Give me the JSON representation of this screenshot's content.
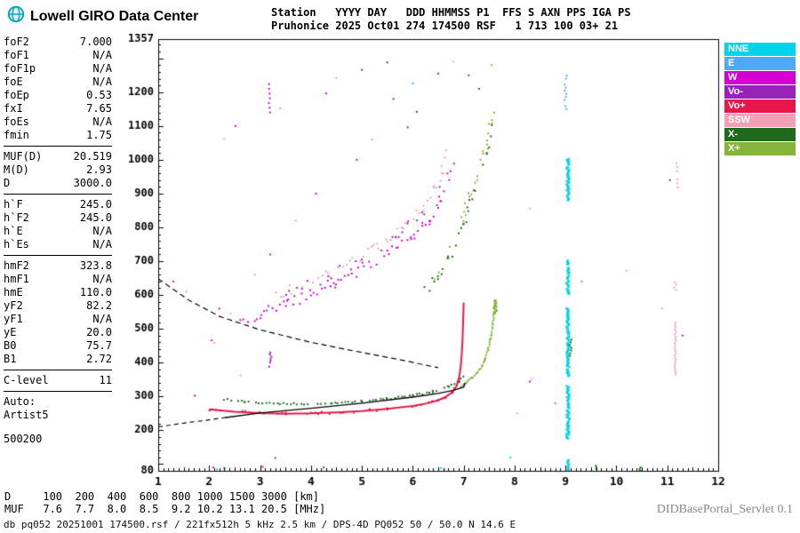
{
  "header": {
    "brand": "Lowell GIRO Data Center",
    "line1": "Station   YYYY DAY   DDD HHMMSS P1  FFS S AXN PPS IGA PS",
    "line2": "Pruhonice 2025 Oct01 274 174500 RSF   1 713 100 03+ 21"
  },
  "params": {
    "groups": [
      [
        {
          "label": "foF2",
          "value": "7.000"
        },
        {
          "label": "foF1",
          "value": "N/A"
        },
        {
          "label": "foF1p",
          "value": "N/A"
        },
        {
          "label": "foE",
          "value": "N/A"
        },
        {
          "label": "foEp",
          "value": "0.53"
        },
        {
          "label": "fxI",
          "value": "7.65"
        },
        {
          "label": "foEs",
          "value": "N/A"
        },
        {
          "label": "fmin",
          "value": "1.75"
        }
      ],
      [
        {
          "label": "MUF(D)",
          "value": "20.519"
        },
        {
          "label": "M(D)",
          "value": "2.93"
        },
        {
          "label": "D",
          "value": "3000.0"
        }
      ],
      [
        {
          "label": "h`F",
          "value": "245.0"
        },
        {
          "label": "h`F2",
          "value": "245.0"
        },
        {
          "label": "h`E",
          "value": "N/A"
        },
        {
          "label": "h`Es",
          "value": "N/A"
        }
      ],
      [
        {
          "label": "hmF2",
          "value": "323.8"
        },
        {
          "label": "hmF1",
          "value": "N/A"
        },
        {
          "label": "hmE",
          "value": "110.0"
        },
        {
          "label": "yF2",
          "value": "82.2"
        },
        {
          "label": "yF1",
          "value": "N/A"
        },
        {
          "label": "yE",
          "value": "20.0"
        },
        {
          "label": "B0",
          "value": "75.7"
        },
        {
          "label": "B1",
          "value": "2.72"
        }
      ],
      [
        {
          "label": "C-level",
          "value": "11"
        }
      ]
    ],
    "auto_lines": [
      "Auto:",
      "Artist5",
      "500200"
    ]
  },
  "footer": {
    "d_row": {
      "label": "D",
      "values": [
        "100",
        "200",
        "400",
        "600",
        "800",
        "1000",
        "1500",
        "3000"
      ],
      "unit": "[km]"
    },
    "muf_row": {
      "label": "MUF",
      "values": [
        "7.6",
        "7.7",
        "8.0",
        "8.5",
        "9.2",
        "10.2",
        "13.1",
        "20.5"
      ],
      "unit": "[MHz]"
    },
    "status": "db pq052 20251001 174500.rsf / 221fx512h 5 kHz 2.5 km / DPS-4D PQ052 50 / 50.0 N 14.6 E",
    "servlet": "DIDBasePortal_Servlet 0.1"
  },
  "chart_data": {
    "type": "scatter",
    "x_unit": "MHz",
    "y_unit": "km",
    "x_range": [
      1,
      12
    ],
    "y_range": [
      80,
      1357
    ],
    "x_ticks": [
      1,
      2,
      3,
      4,
      5,
      6,
      7,
      8,
      9,
      10,
      11,
      12
    ],
    "y_ticks": [
      80,
      200,
      300,
      400,
      500,
      600,
      700,
      800,
      900,
      1000,
      1100,
      1200,
      1357
    ],
    "colors": {
      "NNE": "#00d4e8",
      "E": "#4fa8f8",
      "W": "#d400d4",
      "Vo-": "#9922bb",
      "Vo+": "#e8174a",
      "SSW": "#f2a0b5",
      "X-": "#1e6b1e",
      "X+": "#86b33c",
      "black": "#000000"
    },
    "legend": [
      {
        "label": "NNE",
        "color": "NNE"
      },
      {
        "label": "E",
        "color": "E"
      },
      {
        "label": "W",
        "color": "W"
      },
      {
        "label": "Vo-",
        "color": "Vo-"
      },
      {
        "label": "Vo+",
        "color": "Vo+"
      },
      {
        "label": "SSW",
        "color": "SSW"
      },
      {
        "label": "X-",
        "color": "X-"
      },
      {
        "label": "X+",
        "color": "X+"
      }
    ],
    "strips": [
      {
        "f": 9.05,
        "h1": 80,
        "h2": 112,
        "color": "NNE",
        "w": 3,
        "step": 4
      },
      {
        "f": 9.05,
        "h1": 175,
        "h2": 332,
        "color": "NNE",
        "w": 3,
        "step": 3
      },
      {
        "f": 9.05,
        "h1": 360,
        "h2": 562,
        "color": "NNE",
        "w": 3,
        "step": 3
      },
      {
        "f": 9.05,
        "h1": 600,
        "h2": 702,
        "color": "NNE",
        "w": 3,
        "step": 3
      },
      {
        "f": 9.05,
        "h1": 880,
        "h2": 1005,
        "color": "NNE",
        "w": 3,
        "step": 3
      },
      {
        "f": 9.0,
        "h1": 1150,
        "h2": 1255,
        "color": "E",
        "w": 2,
        "step": 9
      },
      {
        "f": 9.1,
        "h1": 420,
        "h2": 470,
        "color": "X-",
        "w": 2,
        "step": 8
      },
      {
        "f": 3.2,
        "h1": 388,
        "h2": 432,
        "color": "Vo-",
        "w": 2,
        "step": 6
      },
      {
        "f": 3.2,
        "h1": 1140,
        "h2": 1230,
        "color": "W",
        "w": 2,
        "step": 14
      },
      {
        "f": 11.15,
        "h1": 365,
        "h2": 532,
        "color": "SSW",
        "w": 2,
        "step": 7
      },
      {
        "f": 11.15,
        "h1": 598,
        "h2": 640,
        "color": "SSW",
        "w": 2,
        "step": 8
      },
      {
        "f": 11.2,
        "h1": 918,
        "h2": 1000,
        "color": "SSW",
        "w": 2,
        "step": 12
      },
      {
        "f": 7.62,
        "h1": 545,
        "h2": 585,
        "color": "X+",
        "w": 3,
        "step": 4
      },
      {
        "f": 9.6,
        "h1": 80,
        "h2": 96,
        "color": "X-",
        "w": 2,
        "step": 5
      },
      {
        "f": 10.45,
        "h1": 80,
        "h2": 92,
        "color": "X-",
        "w": 2,
        "step": 5
      }
    ],
    "traces": [
      {
        "name": "spread-echo-band-1",
        "style": "dots",
        "color": "W",
        "size": 2,
        "step": 4,
        "jitter": 14,
        "fjitter": 0.07,
        "density": 0.8,
        "points": [
          [
            2.6,
            520
          ],
          [
            3.0,
            545
          ],
          [
            3.5,
            572
          ],
          [
            4.0,
            602
          ],
          [
            4.5,
            636
          ],
          [
            5.0,
            675
          ],
          [
            5.5,
            720
          ],
          [
            6.0,
            775
          ],
          [
            6.3,
            822
          ],
          [
            6.55,
            878
          ],
          [
            6.7,
            940
          ],
          [
            6.8,
            1000
          ]
        ]
      },
      {
        "name": "spread-echo-band-2",
        "style": "dots",
        "color": "SSW",
        "size": 2,
        "step": 5,
        "jitter": 16,
        "fjitter": 0.08,
        "density": 0.75,
        "points": [
          [
            3.3,
            598
          ],
          [
            3.8,
            628
          ],
          [
            4.3,
            660
          ],
          [
            4.8,
            698
          ],
          [
            5.3,
            742
          ],
          [
            5.8,
            795
          ],
          [
            6.2,
            855
          ],
          [
            6.45,
            915
          ],
          [
            6.6,
            975
          ],
          [
            6.7,
            1030
          ]
        ]
      },
      {
        "name": "spread-echo-band-3",
        "style": "dots",
        "color": "Vo-",
        "size": 2,
        "step": 7,
        "jitter": 18,
        "fjitter": 0.08,
        "density": 0.6,
        "points": [
          [
            2.9,
            556
          ],
          [
            3.6,
            600
          ],
          [
            4.3,
            650
          ],
          [
            5.0,
            706
          ],
          [
            5.7,
            772
          ],
          [
            6.2,
            840
          ],
          [
            6.5,
            905
          ]
        ]
      },
      {
        "name": "spread-green-1",
        "style": "dots",
        "color": "X+",
        "size": 2,
        "step": 5,
        "jitter": 20,
        "fjitter": 0.08,
        "density": 0.7,
        "points": [
          [
            6.35,
            640
          ],
          [
            6.6,
            700
          ],
          [
            6.85,
            775
          ],
          [
            7.05,
            860
          ],
          [
            7.25,
            950
          ],
          [
            7.45,
            1050
          ],
          [
            7.6,
            1140
          ]
        ]
      },
      {
        "name": "spread-green-2",
        "style": "dots",
        "color": "X-",
        "size": 2,
        "step": 6,
        "jitter": 15,
        "fjitter": 0.07,
        "density": 0.65,
        "points": [
          [
            6.2,
            600
          ],
          [
            6.5,
            660
          ],
          [
            6.8,
            735
          ],
          [
            7.0,
            815
          ],
          [
            7.2,
            900
          ],
          [
            7.4,
            995
          ],
          [
            7.55,
            1090
          ]
        ]
      },
      {
        "name": "x-trace-low",
        "style": "dots",
        "color": "X-",
        "size": 2,
        "step": 4,
        "jitter": 2.5,
        "fjitter": 0.03,
        "density": 0.9,
        "points": [
          [
            2.3,
            292
          ],
          [
            2.7,
            285
          ],
          [
            3.2,
            280
          ],
          [
            3.8,
            278
          ],
          [
            4.4,
            280
          ],
          [
            5.0,
            286
          ],
          [
            5.5,
            293
          ],
          [
            6.0,
            303
          ],
          [
            6.4,
            314
          ],
          [
            6.7,
            328
          ],
          [
            6.9,
            344
          ],
          [
            7.0,
            358
          ]
        ]
      },
      {
        "name": "x-trace-high",
        "style": "dots",
        "color": "X+",
        "size": 2,
        "step": 2.5,
        "jitter": 2,
        "fjitter": 0.02,
        "density": 0.95,
        "points": [
          [
            6.95,
            330
          ],
          [
            7.05,
            341
          ],
          [
            7.15,
            353
          ],
          [
            7.25,
            368
          ],
          [
            7.35,
            388
          ],
          [
            7.42,
            410
          ],
          [
            7.48,
            438
          ],
          [
            7.53,
            472
          ],
          [
            7.57,
            512
          ],
          [
            7.6,
            552
          ],
          [
            7.62,
            582
          ]
        ]
      },
      {
        "name": "f-trace-fuzz",
        "style": "dots",
        "color": "Vo+",
        "size": 2,
        "step": 4,
        "jitter": 4,
        "fjitter": 0.03,
        "density": 0.5,
        "points": [
          [
            2.0,
            262
          ],
          [
            2.5,
            255
          ],
          [
            3.0,
            251
          ],
          [
            3.5,
            249
          ],
          [
            4.0,
            250
          ],
          [
            4.5,
            253
          ],
          [
            5.0,
            257
          ],
          [
            5.5,
            263
          ],
          [
            6.0,
            272
          ],
          [
            6.3,
            280
          ],
          [
            6.5,
            289
          ],
          [
            6.65,
            299
          ],
          [
            6.78,
            313
          ],
          [
            6.86,
            331
          ],
          [
            6.91,
            356
          ]
        ]
      },
      {
        "name": "f-trace-o-mode",
        "style": "line",
        "color": "Vo+",
        "width": 2,
        "points": [
          [
            2.0,
            262
          ],
          [
            2.5,
            255
          ],
          [
            3.0,
            251
          ],
          [
            3.5,
            249
          ],
          [
            4.0,
            250
          ],
          [
            4.5,
            253
          ],
          [
            5.0,
            257
          ],
          [
            5.5,
            263
          ],
          [
            6.0,
            272
          ],
          [
            6.3,
            280
          ],
          [
            6.5,
            289
          ],
          [
            6.65,
            299
          ],
          [
            6.78,
            313
          ],
          [
            6.86,
            331
          ],
          [
            6.91,
            356
          ],
          [
            6.94,
            386
          ],
          [
            6.96,
            420
          ],
          [
            6.975,
            458
          ],
          [
            6.985,
            500
          ],
          [
            6.993,
            540
          ],
          [
            7.0,
            578
          ]
        ]
      },
      {
        "name": "transmission-curve",
        "style": "line",
        "color": "black",
        "width": 1.2,
        "dash": [
          6,
          4
        ],
        "points": [
          [
            1.0,
            648
          ],
          [
            1.6,
            585
          ],
          [
            2.2,
            537
          ],
          [
            3.0,
            497
          ],
          [
            4.0,
            460
          ],
          [
            5.0,
            430
          ],
          [
            5.8,
            407
          ],
          [
            6.5,
            385
          ]
        ]
      },
      {
        "name": "profile-extrapolation",
        "style": "line",
        "color": "black",
        "width": 1.2,
        "dash": [
          5,
          4
        ],
        "points": [
          [
            1.0,
            210
          ],
          [
            1.5,
            221
          ],
          [
            2.0,
            231
          ],
          [
            2.3,
            237
          ]
        ]
      },
      {
        "name": "true-height-profile",
        "style": "line",
        "color": "black",
        "width": 1.4,
        "points": [
          [
            2.3,
            237
          ],
          [
            3.0,
            251
          ],
          [
            4.0,
            265
          ],
          [
            5.0,
            280
          ],
          [
            6.0,
            298
          ],
          [
            6.5,
            309
          ],
          [
            6.8,
            318
          ],
          [
            7.0,
            328
          ],
          [
            7.03,
            340
          ]
        ]
      }
    ],
    "sparse_points": [
      [
        2.08,
        90,
        "Vo+"
      ],
      [
        2.15,
        84,
        "E"
      ],
      [
        2.3,
        88,
        "X-"
      ],
      [
        3.05,
        92,
        "Vo+"
      ],
      [
        4.25,
        90,
        "X-"
      ],
      [
        6.55,
        88,
        "NNE"
      ],
      [
        6.62,
        84,
        "E"
      ],
      [
        2.3,
        1062,
        "SSW"
      ],
      [
        2.52,
        1100,
        "W"
      ],
      [
        3.4,
        1152,
        "SSW"
      ],
      [
        4.3,
        1196,
        "W"
      ],
      [
        4.5,
        1242,
        "SSW"
      ],
      [
        5.0,
        1266,
        "X-"
      ],
      [
        5.5,
        1288,
        "X-"
      ],
      [
        5.62,
        1180,
        "X-"
      ],
      [
        5.9,
        1096,
        "X-"
      ],
      [
        6.0,
        1226,
        "E"
      ],
      [
        6.08,
        1142,
        "X-"
      ],
      [
        8.3,
        856,
        "SSW"
      ],
      [
        8.34,
        352,
        "SSW"
      ],
      [
        8.3,
        344,
        "W"
      ],
      [
        7.92,
        120,
        "NNE"
      ],
      [
        9.32,
        640,
        "E"
      ],
      [
        10.2,
        672,
        "SSW"
      ],
      [
        11.05,
        940,
        "X-"
      ],
      [
        2.05,
        466,
        "W"
      ],
      [
        2.1,
        458,
        "SSW"
      ],
      [
        1.72,
        302,
        "W"
      ],
      [
        2.62,
        362,
        "SSW"
      ],
      [
        3.3,
        118,
        "Vo-"
      ],
      [
        1.3,
        640,
        "W"
      ],
      [
        1.55,
        610,
        "SSW"
      ],
      [
        2.2,
        560,
        "W"
      ],
      [
        2.42,
        545,
        "SSW"
      ],
      [
        4.9,
        1000,
        "W"
      ],
      [
        5.2,
        1060,
        "SSW"
      ],
      [
        4.1,
        900,
        "W"
      ],
      [
        3.7,
        820,
        "SSW"
      ],
      [
        3.2,
        720,
        "W"
      ],
      [
        2.9,
        660,
        "SSW"
      ],
      [
        7.1,
        1250,
        "X-"
      ],
      [
        6.8,
        1290,
        "SSW"
      ],
      [
        6.5,
        1255,
        "W"
      ],
      [
        7.3,
        1210,
        "X-"
      ],
      [
        7.55,
        1280,
        "X+"
      ],
      [
        10.9,
        560,
        "SSW"
      ],
      [
        11.3,
        480,
        "W"
      ],
      [
        8.8,
        280,
        "E"
      ],
      [
        8.05,
        250,
        "SSW"
      ]
    ]
  }
}
